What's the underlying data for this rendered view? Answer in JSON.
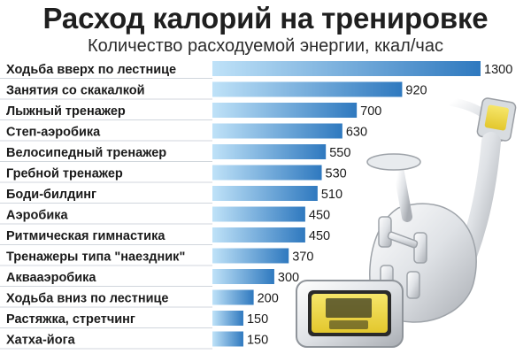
{
  "chart_data": {
    "type": "bar",
    "orientation": "horizontal",
    "title": "Расход калорий на тренировке",
    "subtitle": "Количество расходуемой энергии, ккал/час",
    "categories": [
      "Ходьба вверх по лестнице",
      "Занятия со скакалкой",
      "Лыжный тренажер",
      "Степ-аэробика",
      "Велосипедный тренажер",
      "Гребной тренажер",
      "Боди-билдинг",
      "Аэробика",
      "Ритмическая гимнастика",
      "Тренажеры типа \"наездник\"",
      "Аквааэробика",
      "Ходьба вниз по лестнице",
      "Растяжка, стретчинг",
      "Хатха-йога"
    ],
    "values": [
      1300,
      920,
      700,
      630,
      550,
      530,
      510,
      450,
      450,
      370,
      300,
      200,
      150,
      150
    ],
    "value_labels": [
      "1300",
      "920",
      "700",
      "630",
      "550",
      "530",
      "510",
      "450",
      "450",
      "370",
      "300",
      "200",
      "150",
      "150"
    ],
    "xlabel": "",
    "ylabel": "",
    "xlim": [
      0,
      1300
    ],
    "grid": false,
    "legend": "none",
    "bar_color_light": "#a9d5f2",
    "bar_color_dark": "#2f79bf"
  }
}
